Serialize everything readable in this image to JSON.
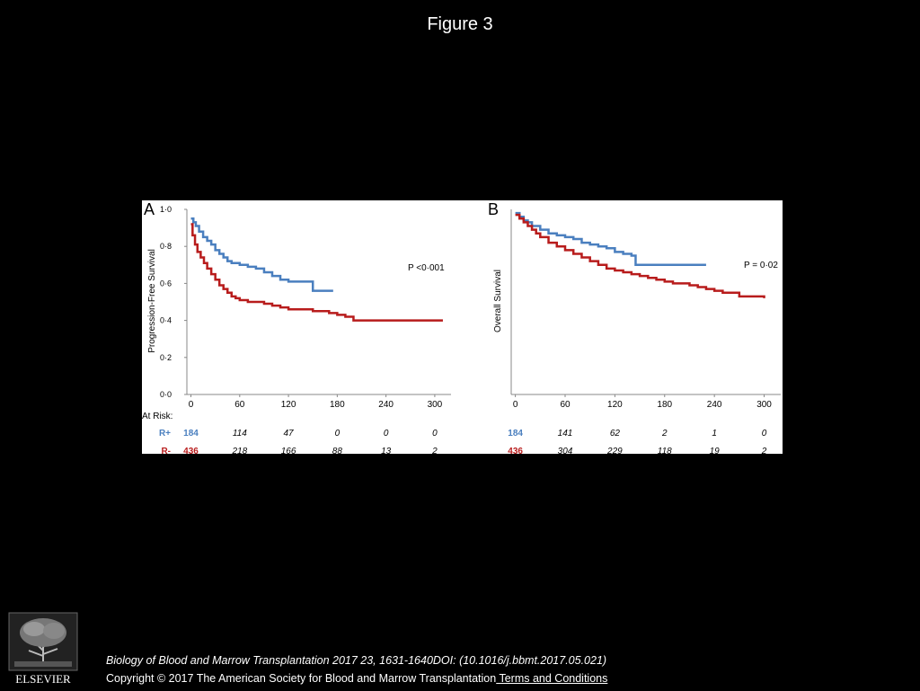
{
  "page": {
    "title": "Figure 3",
    "citation": "Biology of Blood and Marrow Transplantation 2017 23, 1631-1640DOI: (10.1016/j.bbmt.2017.05.021)",
    "copyright": "Copyright © 2017 The American Society for Blood and Marrow Transplantation",
    "terms_link": " Terms and Conditions",
    "logo_text": "ELSEVIER"
  },
  "colors": {
    "r_plus": "#4a7fbf",
    "r_minus": "#b81c1c"
  },
  "chart_data": [
    {
      "type": "line",
      "panel_label": "A",
      "ylabel": "Progression-Free Survival",
      "y_ticks": [
        "0·0",
        "0·2",
        "0·4",
        "0·6",
        "0·8",
        "1·0"
      ],
      "x_ticks": [
        "0",
        "60",
        "120",
        "180",
        "240",
        "300"
      ],
      "xlim": [
        -5,
        320
      ],
      "ylim": [
        0,
        1
      ],
      "annotation": "P <0·001",
      "series": [
        {
          "name": "R+",
          "color": "#4a7fbf",
          "x": [
            0,
            3,
            6,
            10,
            15,
            20,
            25,
            30,
            35,
            40,
            45,
            50,
            55,
            60,
            70,
            80,
            90,
            100,
            110,
            120,
            130,
            140,
            150,
            160,
            170,
            175
          ],
          "y": [
            0.95,
            0.93,
            0.91,
            0.88,
            0.85,
            0.83,
            0.81,
            0.78,
            0.76,
            0.74,
            0.72,
            0.71,
            0.71,
            0.7,
            0.69,
            0.68,
            0.66,
            0.64,
            0.62,
            0.61,
            0.61,
            0.61,
            0.56,
            0.56,
            0.56,
            0.56
          ]
        },
        {
          "name": "R-",
          "color": "#b81c1c",
          "x": [
            0,
            2,
            5,
            8,
            12,
            16,
            20,
            25,
            30,
            35,
            40,
            45,
            50,
            55,
            60,
            70,
            80,
            90,
            100,
            110,
            120,
            130,
            140,
            150,
            160,
            170,
            180,
            190,
            200,
            220,
            240,
            260,
            280,
            300,
            310
          ],
          "y": [
            0.92,
            0.86,
            0.81,
            0.77,
            0.74,
            0.71,
            0.68,
            0.65,
            0.62,
            0.59,
            0.57,
            0.55,
            0.53,
            0.52,
            0.51,
            0.5,
            0.5,
            0.49,
            0.48,
            0.47,
            0.46,
            0.46,
            0.46,
            0.45,
            0.45,
            0.44,
            0.43,
            0.42,
            0.4,
            0.4,
            0.4,
            0.4,
            0.4,
            0.4,
            0.4
          ]
        }
      ],
      "at_risk": {
        "heading": "At Risk:",
        "rows": [
          {
            "label": "R+",
            "values": [
              "184",
              "114",
              "47",
              "0",
              "0",
              "0"
            ]
          },
          {
            "label": "R-",
            "values": [
              "436",
              "218",
              "166",
              "88",
              "13",
              "2"
            ]
          }
        ]
      }
    },
    {
      "type": "line",
      "panel_label": "B",
      "ylabel": "Overall Survival",
      "x_ticks": [
        "0",
        "60",
        "120",
        "180",
        "240",
        "300"
      ],
      "xlim": [
        -5,
        320
      ],
      "ylim": [
        0,
        1
      ],
      "annotation": "P = 0·02",
      "series": [
        {
          "name": "R+",
          "color": "#4a7fbf",
          "x": [
            0,
            5,
            10,
            15,
            20,
            30,
            40,
            50,
            60,
            70,
            80,
            90,
            100,
            110,
            120,
            130,
            140,
            145,
            150,
            160,
            180,
            200,
            220,
            230
          ],
          "y": [
            0.98,
            0.96,
            0.94,
            0.93,
            0.91,
            0.89,
            0.87,
            0.86,
            0.85,
            0.84,
            0.82,
            0.81,
            0.8,
            0.79,
            0.77,
            0.76,
            0.75,
            0.7,
            0.7,
            0.7,
            0.7,
            0.7,
            0.7,
            0.7
          ]
        },
        {
          "name": "R-",
          "color": "#b81c1c",
          "x": [
            0,
            5,
            10,
            15,
            20,
            25,
            30,
            40,
            50,
            60,
            70,
            80,
            90,
            100,
            110,
            120,
            130,
            140,
            150,
            160,
            170,
            180,
            190,
            200,
            210,
            220,
            230,
            240,
            250,
            270,
            300
          ],
          "y": [
            0.97,
            0.95,
            0.93,
            0.91,
            0.89,
            0.87,
            0.85,
            0.82,
            0.8,
            0.78,
            0.76,
            0.74,
            0.72,
            0.7,
            0.68,
            0.67,
            0.66,
            0.65,
            0.64,
            0.63,
            0.62,
            0.61,
            0.6,
            0.6,
            0.59,
            0.58,
            0.57,
            0.56,
            0.55,
            0.53,
            0.52
          ]
        }
      ],
      "at_risk": {
        "rows": [
          {
            "label": "R+",
            "values": [
              "184",
              "141",
              "62",
              "2",
              "1",
              "0"
            ]
          },
          {
            "label": "R-",
            "values": [
              "436",
              "304",
              "229",
              "118",
              "19",
              "2"
            ]
          }
        ]
      }
    }
  ]
}
